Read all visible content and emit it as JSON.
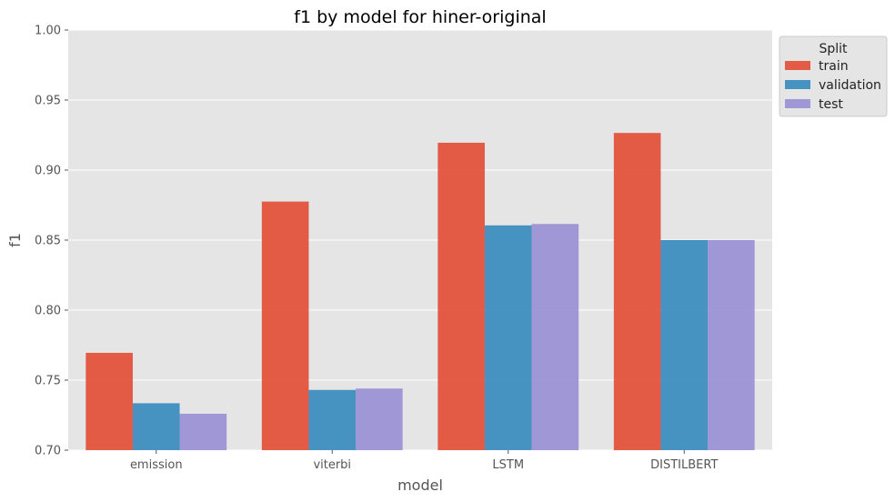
{
  "chart_data": {
    "type": "bar",
    "title": "f1 by model for hiner-original",
    "xlabel": "model",
    "ylabel": "f1",
    "categories": [
      "emission",
      "viterbi",
      "LSTM",
      "DISTILBERT"
    ],
    "series": [
      {
        "name": "train",
        "color": "#E24A33",
        "values": [
          0.7695,
          0.8775,
          0.9195,
          0.9265
        ]
      },
      {
        "name": "validation",
        "color": "#348ABD",
        "values": [
          0.7335,
          0.743,
          0.8605,
          0.85
        ]
      },
      {
        "name": "test",
        "color": "#988ED5",
        "values": [
          0.726,
          0.744,
          0.8615,
          0.85
        ]
      }
    ],
    "ylim": [
      0.7,
      1.0
    ],
    "yticks": [
      "0.70",
      "0.75",
      "0.80",
      "0.85",
      "0.90",
      "0.95",
      "1.00"
    ],
    "grid": true,
    "legend": {
      "title": "Split",
      "placement": "outside upper-right"
    },
    "style": {
      "background": "#E5E5E5",
      "grid_color": "#FFFFFF",
      "bar_opacity": 0.9
    }
  }
}
